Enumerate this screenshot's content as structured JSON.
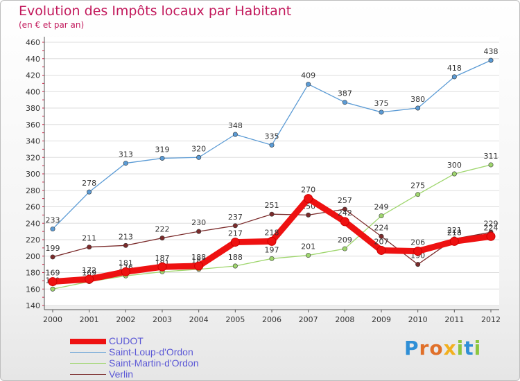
{
  "chart_data": {
    "type": "line",
    "title": "Evolution des Impôts locaux par Habitant",
    "subtitle": "(en € et par an)",
    "xlabel": "",
    "ylabel": "",
    "x": [
      "2000",
      "2001",
      "2002",
      "2003",
      "2004",
      "2005",
      "2006",
      "2007",
      "2008",
      "2009",
      "2010",
      "2011",
      "2012"
    ],
    "ylim": [
      140,
      460
    ],
    "yticks": [
      140,
      160,
      180,
      200,
      220,
      240,
      260,
      280,
      300,
      320,
      340,
      360,
      380,
      400,
      420,
      440,
      460
    ],
    "grid": "horizontal",
    "legend_position": "bottom-left",
    "series": [
      {
        "name": "Saint-Loup-d'Ordon",
        "color": "#5b9bd5",
        "values": [
          233,
          278,
          313,
          319,
          320,
          348,
          335,
          409,
          387,
          375,
          380,
          418,
          438
        ]
      },
      {
        "name": "Saint-Martin-d'Ordon",
        "color": "#9fd66e",
        "values": [
          160,
          169,
          176,
          181,
          184,
          188,
          197,
          201,
          209,
          249,
          275,
          300,
          311
        ]
      },
      {
        "name": "Verlin",
        "color": "#7b2b2b",
        "values": [
          199,
          211,
          213,
          222,
          230,
          237,
          251,
          250,
          257,
          224,
          190,
          221,
          229
        ]
      },
      {
        "name": "CUDOT",
        "color": "#ee1111",
        "values": [
          169,
          172,
          181,
          187,
          188,
          217,
          218,
          270,
          242,
          207,
          206,
          218,
          224
        ]
      }
    ]
  },
  "legend": [
    {
      "name": "CUDOT",
      "color": "#ee1111"
    },
    {
      "name": "Saint-Loup-d'Ordon",
      "color": "#5b9bd5"
    },
    {
      "name": "Saint-Martin-d'Ordon",
      "color": "#9fd66e"
    },
    {
      "name": "Verlin",
      "color": "#7b2b2b"
    }
  ],
  "logo": {
    "letters": [
      "P",
      "r",
      "o",
      "x",
      "i",
      "t",
      "i"
    ]
  }
}
